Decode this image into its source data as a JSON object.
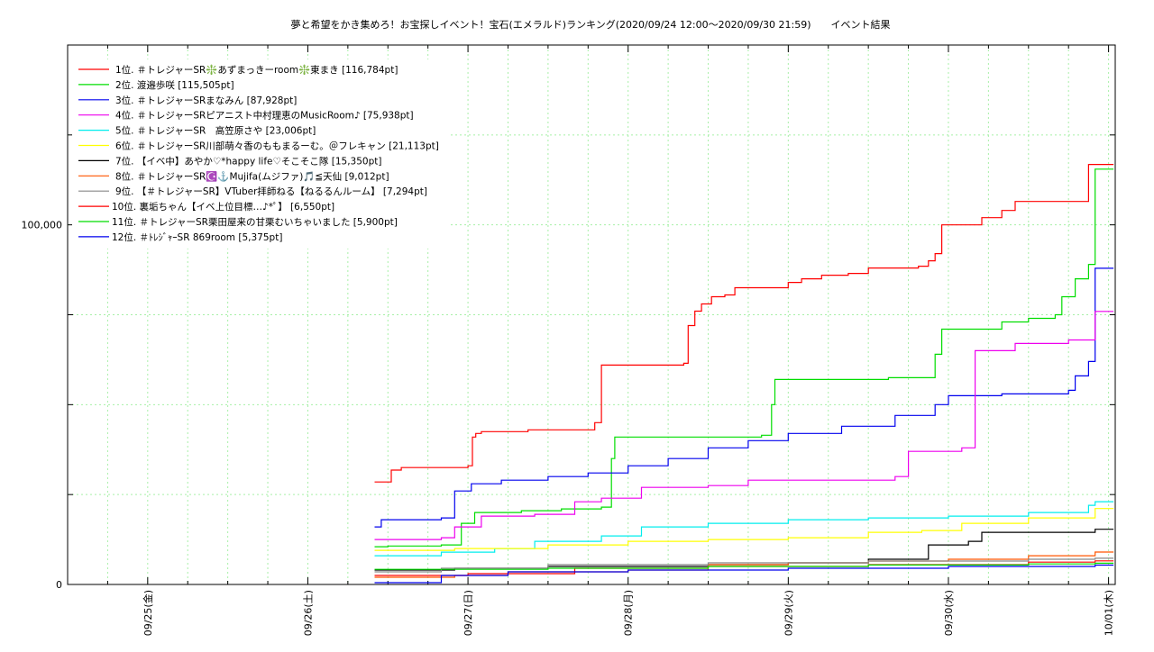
{
  "chart_data": {
    "type": "line",
    "title": "夢と希望をかき集めろ！お宝探しイベント！宝石(エメラルド)ランキング(2020/09/24 12:00～2020/09/30 21:59)　　イベント結果",
    "xlabel": "",
    "ylabel": "",
    "x_ticks": [
      "09/25(金)",
      "09/26(土)",
      "09/27(日)",
      "09/28(月)",
      "09/29(火)",
      "09/30(水)",
      "10/01(木)"
    ],
    "x_range": [
      "2020/09/24 12:00",
      "2020/10/01 01:00"
    ],
    "y_ticks": [
      {
        "value": 0,
        "label": "0"
      },
      {
        "value": 100000,
        "label": "100,000"
      }
    ],
    "ylim": [
      0,
      150000
    ],
    "grid": true,
    "legend_position": "top-left",
    "series": [
      {
        "name": "1位. ＃トレジャーSR❇️あずまっきーroom❇️東まき [116,784pt]",
        "color": "#ff0000",
        "points": [
          [
            "09/26 10:00",
            28500
          ],
          [
            "09/26 11:00",
            28500
          ],
          [
            "09/26 12:30",
            31800
          ],
          [
            "09/26 14:00",
            32500
          ],
          [
            "09/26 22:00",
            32500
          ],
          [
            "09/27 00:00",
            33000
          ],
          [
            "09/27 00:40",
            41000
          ],
          [
            "09/27 01:10",
            42000
          ],
          [
            "09/27 02:00",
            42500
          ],
          [
            "09/27 08:00",
            42500
          ],
          [
            "09/27 09:00",
            43000
          ],
          [
            "09/27 18:00",
            43000
          ],
          [
            "09/27 19:00",
            45000
          ],
          [
            "09/27 20:00",
            61000
          ],
          [
            "09/28 07:30",
            61000
          ],
          [
            "09/28 08:20",
            61500
          ],
          [
            "09/28 09:00",
            72000
          ],
          [
            "09/28 10:00",
            76000
          ],
          [
            "09/28 11:00",
            78000
          ],
          [
            "09/28 12:30",
            80000
          ],
          [
            "09/28 14:30",
            80500
          ],
          [
            "09/28 16:00",
            82500
          ],
          [
            "09/28 19:00",
            82500
          ],
          [
            "09/29 00:00",
            84000
          ],
          [
            "09/29 02:00",
            85000
          ],
          [
            "09/29 05:00",
            86000
          ],
          [
            "09/29 09:00",
            86500
          ],
          [
            "09/29 12:00",
            88000
          ],
          [
            "09/29 19:30",
            88500
          ],
          [
            "09/29 21:00",
            90000
          ],
          [
            "09/29 22:00",
            92000
          ],
          [
            "09/29 23:00",
            100000
          ],
          [
            "09/30 04:30",
            100000
          ],
          [
            "09/30 05:00",
            102000
          ],
          [
            "09/30 08:00",
            104000
          ],
          [
            "09/30 10:00",
            106500
          ],
          [
            "09/30 16:00",
            106500
          ],
          [
            "09/30 21:00",
            116784
          ],
          [
            "10/01 00:45",
            116784
          ]
        ]
      },
      {
        "name": "2位. 渡邉歩咲 [115,505pt]",
        "color": "#00dd00",
        "points": [
          [
            "09/26 10:00",
            10500
          ],
          [
            "09/26 12:00",
            10700
          ],
          [
            "09/26 20:00",
            11000
          ],
          [
            "09/26 23:00",
            17000
          ],
          [
            "09/27 01:00",
            20000
          ],
          [
            "09/27 08:00",
            20500
          ],
          [
            "09/27 14:00",
            21000
          ],
          [
            "09/27 20:00",
            21500
          ],
          [
            "09/27 21:30",
            35000
          ],
          [
            "09/27 22:00",
            41000
          ],
          [
            "09/28 12:00",
            41000
          ],
          [
            "09/28 20:00",
            41500
          ],
          [
            "09/28 21:30",
            50000
          ],
          [
            "09/28 22:00",
            57000
          ],
          [
            "09/29 10:00",
            57000
          ],
          [
            "09/29 15:00",
            57500
          ],
          [
            "09/29 20:00",
            57500
          ],
          [
            "09/29 22:00",
            64000
          ],
          [
            "09/29 23:00",
            71000
          ],
          [
            "09/30 05:00",
            71000
          ],
          [
            "09/30 08:00",
            73000
          ],
          [
            "09/30 12:00",
            74000
          ],
          [
            "09/30 16:00",
            75000
          ],
          [
            "09/30 17:00",
            80000
          ],
          [
            "09/30 19:00",
            85000
          ],
          [
            "09/30 21:00",
            89000
          ],
          [
            "09/30 21:59",
            115505
          ],
          [
            "10/01 00:45",
            115505
          ]
        ]
      },
      {
        "name": "3位. ＃トレジャーSRまなみん [87,928pt]",
        "color": "#0000ee",
        "points": [
          [
            "09/26 10:00",
            16000
          ],
          [
            "09/26 11:00",
            18000
          ],
          [
            "09/26 20:00",
            18500
          ],
          [
            "09/26 22:00",
            26000
          ],
          [
            "09/27 00:30",
            28000
          ],
          [
            "09/27 05:00",
            29000
          ],
          [
            "09/27 12:00",
            30000
          ],
          [
            "09/27 18:00",
            31000
          ],
          [
            "09/28 00:00",
            33000
          ],
          [
            "09/28 06:00",
            35000
          ],
          [
            "09/28 12:00",
            38000
          ],
          [
            "09/28 18:00",
            40000
          ],
          [
            "09/29 00:00",
            42000
          ],
          [
            "09/29 08:00",
            44000
          ],
          [
            "09/29 16:00",
            47000
          ],
          [
            "09/29 22:00",
            50000
          ],
          [
            "09/30 00:00",
            52500
          ],
          [
            "09/30 08:00",
            53000
          ],
          [
            "09/30 18:00",
            54000
          ],
          [
            "09/30 19:00",
            58000
          ],
          [
            "09/30 21:00",
            62000
          ],
          [
            "09/30 21:59",
            87928
          ],
          [
            "10/01 00:45",
            87928
          ]
        ]
      },
      {
        "name": "4位. ＃トレジャーSRピアニスト中村理恵のMusicRoom♪ [75,938pt]",
        "color": "#ee00ee",
        "points": [
          [
            "09/26 10:00",
            12500
          ],
          [
            "09/26 20:00",
            13000
          ],
          [
            "09/26 22:00",
            16000
          ],
          [
            "09/27 02:00",
            19000
          ],
          [
            "09/27 10:00",
            19500
          ],
          [
            "09/27 16:00",
            23000
          ],
          [
            "09/27 20:00",
            24000
          ],
          [
            "09/28 02:00",
            27000
          ],
          [
            "09/28 12:00",
            27500
          ],
          [
            "09/28 18:00",
            29000
          ],
          [
            "09/29 10:00",
            29000
          ],
          [
            "09/29 16:00",
            30000
          ],
          [
            "09/29 18:00",
            37000
          ],
          [
            "09/30 02:00",
            38000
          ],
          [
            "09/30 04:00",
            65000
          ],
          [
            "09/30 10:00",
            67000
          ],
          [
            "09/30 18:00",
            68000
          ],
          [
            "09/30 21:59",
            75938
          ],
          [
            "10/01 00:45",
            75938
          ]
        ]
      },
      {
        "name": "5位. ＃トレジャーSR　高笠原さや [23,006pt]",
        "color": "#00eeee",
        "points": [
          [
            "09/26 10:00",
            8000
          ],
          [
            "09/26 20:00",
            9000
          ],
          [
            "09/27 04:00",
            10000
          ],
          [
            "09/27 10:00",
            12000
          ],
          [
            "09/27 20:00",
            13500
          ],
          [
            "09/28 02:00",
            16000
          ],
          [
            "09/28 12:00",
            17000
          ],
          [
            "09/29 00:00",
            18000
          ],
          [
            "09/29 12:00",
            18500
          ],
          [
            "09/30 00:00",
            19000
          ],
          [
            "09/30 12:00",
            20000
          ],
          [
            "09/30 21:00",
            22000
          ],
          [
            "09/30 21:59",
            23006
          ],
          [
            "10/01 00:45",
            23006
          ]
        ]
      },
      {
        "name": "6位. ＃トレジャーSR川部萌々香のももまるーむ。＠フレキャン [21,113pt]",
        "color": "#ffff00",
        "points": [
          [
            "09/26 10:00",
            9500
          ],
          [
            "09/26 22:00",
            10000
          ],
          [
            "09/27 12:00",
            11000
          ],
          [
            "09/28 00:00",
            12000
          ],
          [
            "09/28 12:00",
            12500
          ],
          [
            "09/29 00:00",
            13000
          ],
          [
            "09/29 12:00",
            14500
          ],
          [
            "09/29 20:00",
            15000
          ],
          [
            "09/30 02:00",
            17000
          ],
          [
            "09/30 12:00",
            18500
          ],
          [
            "09/30 21:59",
            21113
          ],
          [
            "10/01 00:45",
            21113
          ]
        ]
      },
      {
        "name": "7位. 【イベ中】あやか♡*happy life♡そこそこ隊 [15,350pt]",
        "color": "#000000",
        "points": [
          [
            "09/26 10:00",
            4000
          ],
          [
            "09/26 22:00",
            4500
          ],
          [
            "09/27 12:00",
            5000
          ],
          [
            "09/28 12:00",
            5500
          ],
          [
            "09/29 00:00",
            6000
          ],
          [
            "09/29 12:00",
            7000
          ],
          [
            "09/29 21:00",
            11000
          ],
          [
            "09/30 03:00",
            12000
          ],
          [
            "09/30 05:00",
            14500
          ],
          [
            "09/30 21:59",
            15350
          ],
          [
            "10/01 00:45",
            15350
          ]
        ]
      },
      {
        "name": "8位. ＃トレジャーSR☪️⚓️Mujifa(ムジファ)🎵≦天仙 [9,012pt]",
        "color": "#ff5500",
        "points": [
          [
            "09/26 10:00",
            2000
          ],
          [
            "09/26 22:00",
            2500
          ],
          [
            "09/27 06:00",
            3500
          ],
          [
            "09/28 00:00",
            4000
          ],
          [
            "09/28 12:00",
            5500
          ],
          [
            "09/29 00:00",
            6000
          ],
          [
            "09/29 12:00",
            6500
          ],
          [
            "09/30 00:00",
            7000
          ],
          [
            "09/30 12:00",
            8000
          ],
          [
            "09/30 21:59",
            9012
          ],
          [
            "10/01 00:45",
            9012
          ]
        ]
      },
      {
        "name": "9位. 【＃トレジャーSR】VTuber拝師ねる【ねるるんルーム】 [7,294pt]",
        "color": "#888888",
        "points": [
          [
            "09/26 10:00",
            3500
          ],
          [
            "09/26 20:00",
            4500
          ],
          [
            "09/27 12:00",
            5500
          ],
          [
            "09/28 12:00",
            6000
          ],
          [
            "09/29 12:00",
            6500
          ],
          [
            "09/30 12:00",
            7000
          ],
          [
            "09/30 21:59",
            7294
          ],
          [
            "10/01 00:45",
            7294
          ]
        ]
      },
      {
        "name": "10位. 裏垢ちゃん【イベ上位目標…♪*ﾟ】 [6,550pt]",
        "color": "#ff0000",
        "points": [
          [
            "09/26 10:00",
            2500
          ],
          [
            "09/27 00:00",
            3000
          ],
          [
            "09/27 16:00",
            4500
          ],
          [
            "09/28 12:00",
            5000
          ],
          [
            "09/29 12:00",
            5500
          ],
          [
            "09/30 12:00",
            6200
          ],
          [
            "09/30 21:59",
            6550
          ],
          [
            "10/01 00:45",
            6550
          ]
        ]
      },
      {
        "name": "11位. ＃トレジャーSR栗田屋来の甘栗むいちゃいました [5,900pt]",
        "color": "#00dd00",
        "points": [
          [
            "09/26 10:00",
            4200
          ],
          [
            "09/27 12:00",
            4500
          ],
          [
            "09/28 12:00",
            5000
          ],
          [
            "09/29 12:00",
            5400
          ],
          [
            "09/30 12:00",
            5700
          ],
          [
            "09/30 21:59",
            5900
          ],
          [
            "10/01 00:45",
            5900
          ]
        ]
      },
      {
        "name": "12位. ＃ﾄﾚｼﾞｬｰSR 869room [5,375pt]",
        "color": "#0000ee",
        "points": [
          [
            "09/26 10:00",
            500
          ],
          [
            "09/26 20:00",
            2500
          ],
          [
            "09/27 06:00",
            3500
          ],
          [
            "09/28 00:00",
            4000
          ],
          [
            "09/29 00:00",
            4500
          ],
          [
            "09/30 00:00",
            5000
          ],
          [
            "09/30 21:59",
            5375
          ],
          [
            "10/01 00:45",
            5375
          ]
        ]
      }
    ]
  }
}
